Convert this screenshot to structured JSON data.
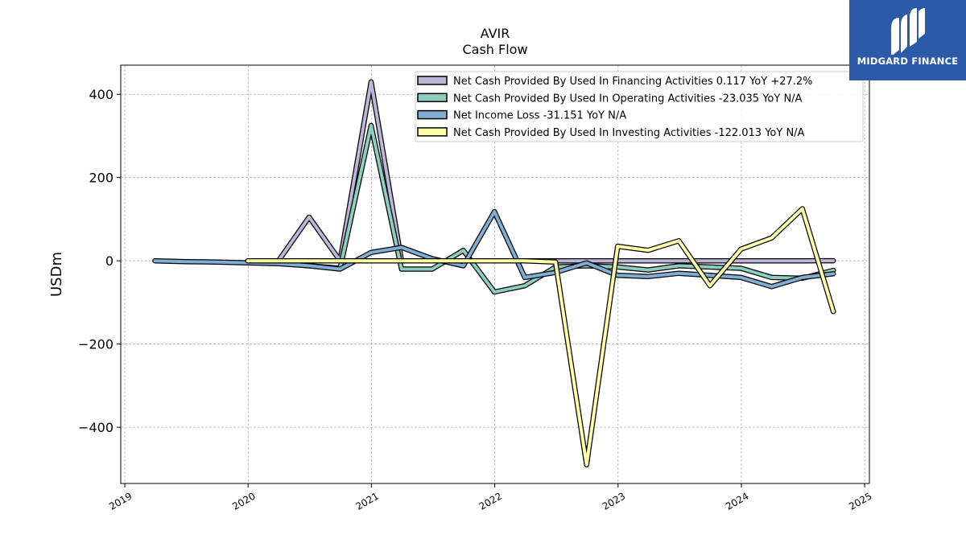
{
  "header": {
    "ticker": "AVIR",
    "subtitle": "Cash Flow"
  },
  "logo": {
    "name": "logo-icon",
    "text": "MIDGARD FINANCE",
    "background": "#2c5aa8"
  },
  "chart_data": {
    "type": "line",
    "title": "AVIR",
    "subtitle": "Cash Flow",
    "xlabel": "",
    "ylabel": "USDm",
    "x_ticks": [
      "2019",
      "2020",
      "2021",
      "2022",
      "2023",
      "2024",
      "2025"
    ],
    "y_ticks": [
      400,
      200,
      0,
      -200,
      -400
    ],
    "y_tick_labels": [
      "400",
      "200",
      "0",
      "−200",
      "−400"
    ],
    "xlim": [
      "2018-12-20",
      "2025-01-15"
    ],
    "ylim": [
      -535,
      470
    ],
    "grid": true,
    "legend_position": "top-right",
    "series": [
      {
        "name": "Net Cash Provided By Used In Financing Activities",
        "legend": "Net Cash Provided By Used In Financing Activities  0.117 YoY +27.2%",
        "color": "#bcb5d8",
        "points": [
          [
            "2019-12-31",
            0
          ],
          [
            "2020-03-31",
            0
          ],
          [
            "2020-06-30",
            105
          ],
          [
            "2020-09-30",
            0
          ],
          [
            "2020-12-31",
            430
          ],
          [
            "2021-03-31",
            0
          ],
          [
            "2021-06-30",
            0
          ],
          [
            "2021-09-30",
            0
          ],
          [
            "2021-12-31",
            0
          ],
          [
            "2022-03-31",
            0
          ],
          [
            "2022-06-30",
            0
          ],
          [
            "2022-09-30",
            0
          ],
          [
            "2022-12-31",
            0
          ],
          [
            "2023-03-31",
            0
          ],
          [
            "2023-06-30",
            0
          ],
          [
            "2023-09-30",
            0
          ],
          [
            "2023-12-31",
            0
          ],
          [
            "2024-03-31",
            0
          ],
          [
            "2024-06-30",
            0
          ],
          [
            "2024-09-30",
            0.117
          ]
        ]
      },
      {
        "name": "Net Cash Provided By Used In Operating Activities",
        "legend": "Net Cash Provided By Used In Operating Activities  -23.035 YoY N/A",
        "color": "#8dcdbf",
        "points": [
          [
            "2019-12-31",
            -3
          ],
          [
            "2020-03-31",
            -5
          ],
          [
            "2020-06-30",
            -12
          ],
          [
            "2020-09-30",
            -18
          ],
          [
            "2020-12-31",
            325
          ],
          [
            "2021-03-31",
            -20
          ],
          [
            "2021-06-30",
            -20
          ],
          [
            "2021-09-30",
            25
          ],
          [
            "2021-12-31",
            -75
          ],
          [
            "2022-03-31",
            -60
          ],
          [
            "2022-06-30",
            -15
          ],
          [
            "2022-09-30",
            -12
          ],
          [
            "2022-12-31",
            -15
          ],
          [
            "2023-03-31",
            -22
          ],
          [
            "2023-06-30",
            -12
          ],
          [
            "2023-09-30",
            -15
          ],
          [
            "2023-12-31",
            -18
          ],
          [
            "2024-03-31",
            -40
          ],
          [
            "2024-06-30",
            -42
          ],
          [
            "2024-09-30",
            -23.035
          ]
        ]
      },
      {
        "name": "Net Income Loss",
        "legend": "Net Income Loss  -31.151 YoY N/A",
        "color": "#7fadd3",
        "points": [
          [
            "2019-03-31",
            0
          ],
          [
            "2019-06-30",
            -2
          ],
          [
            "2019-09-30",
            -3
          ],
          [
            "2019-12-31",
            -5
          ],
          [
            "2020-03-31",
            -7
          ],
          [
            "2020-06-30",
            -12
          ],
          [
            "2020-09-30",
            -20
          ],
          [
            "2020-12-31",
            20
          ],
          [
            "2021-03-31",
            32
          ],
          [
            "2021-06-30",
            5
          ],
          [
            "2021-09-30",
            -12
          ],
          [
            "2021-12-31",
            118
          ],
          [
            "2022-03-31",
            -40
          ],
          [
            "2022-06-30",
            -28
          ],
          [
            "2022-09-30",
            -5
          ],
          [
            "2022-12-31",
            -35
          ],
          [
            "2023-03-31",
            -38
          ],
          [
            "2023-06-30",
            -30
          ],
          [
            "2023-09-30",
            -35
          ],
          [
            "2023-12-31",
            -40
          ],
          [
            "2024-03-31",
            -62
          ],
          [
            "2024-06-30",
            -40
          ],
          [
            "2024-09-30",
            -31.151
          ]
        ]
      },
      {
        "name": "Net Cash Provided By Used In Investing Activities",
        "legend": "Net Cash Provided By Used In Investing Activities  -122.013 YoY N/A",
        "color": "#fffea8",
        "points": [
          [
            "2019-12-31",
            0
          ],
          [
            "2020-03-31",
            0
          ],
          [
            "2020-06-30",
            0
          ],
          [
            "2020-09-30",
            0
          ],
          [
            "2020-12-31",
            0
          ],
          [
            "2021-03-31",
            0
          ],
          [
            "2021-06-30",
            0
          ],
          [
            "2021-09-30",
            0
          ],
          [
            "2021-12-31",
            0
          ],
          [
            "2022-03-31",
            0
          ],
          [
            "2022-06-30",
            -3
          ],
          [
            "2022-09-30",
            -490
          ],
          [
            "2022-12-31",
            35
          ],
          [
            "2023-03-31",
            25
          ],
          [
            "2023-06-30",
            48
          ],
          [
            "2023-09-30",
            -60
          ],
          [
            "2023-12-31",
            28
          ],
          [
            "2024-03-31",
            55
          ],
          [
            "2024-06-30",
            125
          ],
          [
            "2024-09-30",
            -122.013
          ]
        ]
      }
    ]
  }
}
